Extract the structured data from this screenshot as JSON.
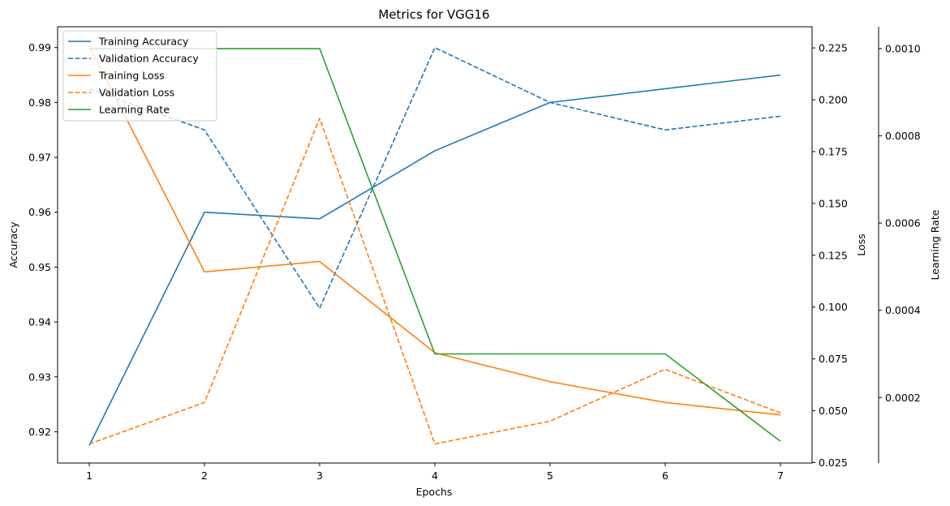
{
  "chart_data": {
    "type": "line",
    "title": "Metrics for VGG16",
    "xlabel": "Epochs",
    "x": [
      1,
      2,
      3,
      4,
      5,
      6,
      7
    ],
    "x_ticks": [
      "1",
      "2",
      "3",
      "4",
      "5",
      "6",
      "7"
    ],
    "axes": {
      "accuracy": {
        "label": "Accuracy",
        "lim": [
          0.9143,
          0.9938
        ],
        "ticks": [
          "0.92",
          "0.93",
          "0.94",
          "0.95",
          "0.96",
          "0.97",
          "0.98",
          "0.99"
        ],
        "tick_values": [
          0.92,
          0.93,
          0.94,
          0.95,
          0.96,
          0.97,
          0.98,
          0.99
        ]
      },
      "loss": {
        "label": "Loss",
        "lim": [
          0.0248,
          0.2352
        ],
        "ticks": [
          "0.025",
          "0.050",
          "0.075",
          "0.100",
          "0.125",
          "0.150",
          "0.175",
          "0.200",
          "0.225"
        ],
        "tick_values": [
          0.025,
          0.05,
          0.075,
          0.1,
          0.125,
          0.15,
          0.175,
          0.2,
          0.225
        ]
      },
      "lr": {
        "label": "Learning Rate",
        "lim": [
          5e-05,
          0.00105
        ],
        "ticks": [
          "0.0002",
          "0.0004",
          "0.0006",
          "0.0008",
          "0.0010"
        ],
        "tick_values": [
          0.0002,
          0.0004,
          0.0006,
          0.0008,
          0.001
        ]
      }
    },
    "series": [
      {
        "name": "Training Accuracy",
        "axis": "accuracy",
        "style": "solid",
        "color": "#1f77b4",
        "values": [
          0.9175,
          0.96,
          0.9588,
          0.9712,
          0.98,
          0.9825,
          0.985
        ]
      },
      {
        "name": "Validation Accuracy",
        "axis": "accuracy",
        "style": "dashed",
        "color": "#1f77b4",
        "values": [
          0.9825,
          0.975,
          0.9425,
          0.99,
          0.98,
          0.975,
          0.9775
        ]
      },
      {
        "name": "Training Loss",
        "axis": "loss",
        "style": "solid",
        "color": "#ff7f0e",
        "values": [
          0.226,
          0.117,
          0.122,
          0.078,
          0.064,
          0.054,
          0.048
        ]
      },
      {
        "name": "Validation Loss",
        "axis": "loss",
        "style": "dashed",
        "color": "#ff7f0e",
        "values": [
          0.034,
          0.054,
          0.191,
          0.034,
          0.045,
          0.07,
          0.049
        ]
      },
      {
        "name": "Learning Rate",
        "axis": "lr",
        "style": "solid",
        "color": "#2ca02c",
        "values": [
          0.001,
          0.001,
          0.001,
          0.0003,
          0.0003,
          0.0003,
          0.0001
        ]
      }
    ],
    "legend": "top-left",
    "grid": false
  }
}
